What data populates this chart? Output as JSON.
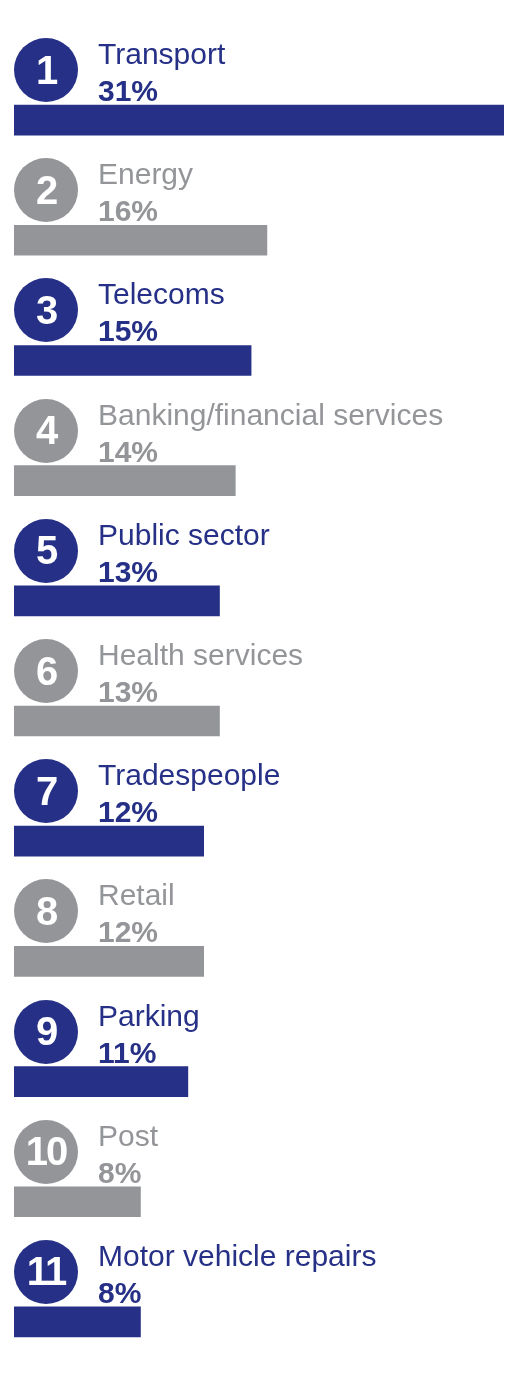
{
  "chart_data": {
    "type": "bar",
    "orientation": "horizontal",
    "categories": [
      "Transport",
      "Energy",
      "Telecoms",
      "Banking/financial services",
      "Public sector",
      "Health services",
      "Tradespeople",
      "Retail",
      "Parking",
      "Post",
      "Motor vehicle repairs"
    ],
    "values": [
      31,
      16,
      15,
      14,
      13,
      13,
      12,
      12,
      11,
      8,
      8
    ],
    "value_labels": [
      "31%",
      "16%",
      "15%",
      "14%",
      "13%",
      "13%",
      "12%",
      "12%",
      "11%",
      "8%",
      "8%"
    ],
    "colors": [
      "#253086",
      "#939598",
      "#253086",
      "#939598",
      "#253086",
      "#939598",
      "#253086",
      "#939598",
      "#253086",
      "#939598",
      "#253086"
    ],
    "annotations": [
      "1",
      "2",
      "3",
      "4",
      "5",
      "6",
      "7",
      "8",
      "9",
      "10",
      "11"
    ]
  }
}
